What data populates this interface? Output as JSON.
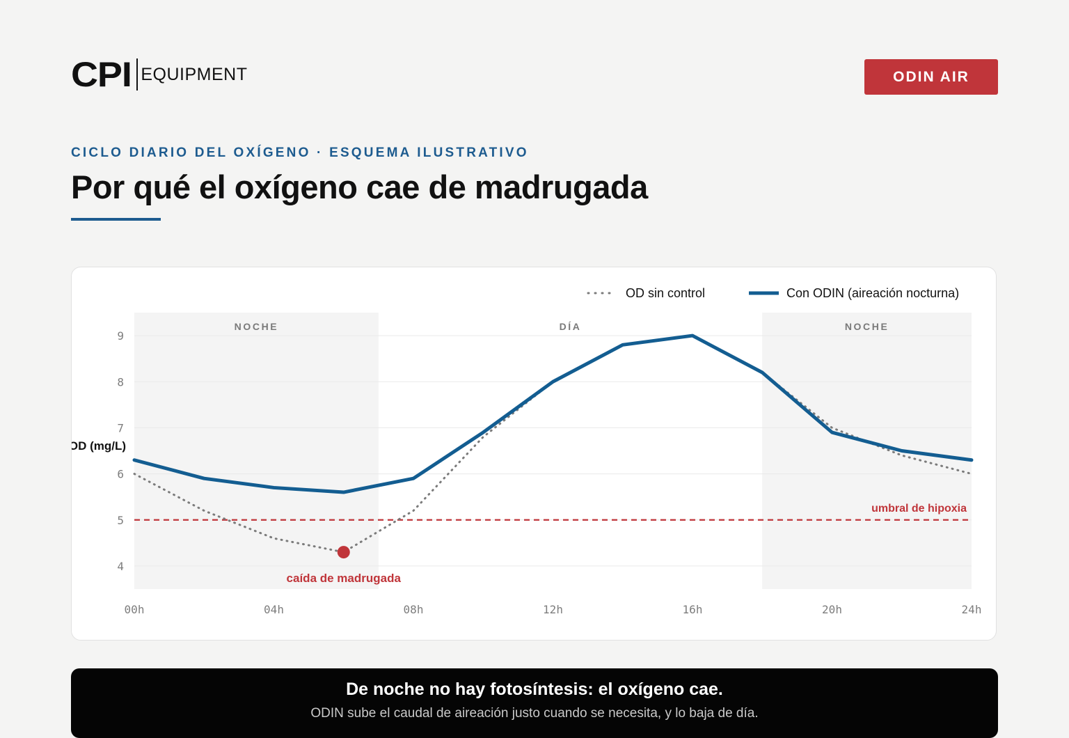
{
  "brand": {
    "logo_main": "CPI",
    "logo_sub": "EQUIPMENT"
  },
  "header": {
    "cta_label": "ODIN AIR"
  },
  "eyebrow": "CICLO DIARIO DEL OXÍGENO · ESQUEMA ILUSTRATIVO",
  "title": "Por qué el oxígeno cae de madrugada",
  "banner": {
    "headline": "De noche no hay fotosíntesis: el oxígeno cae.",
    "subline": "ODIN sube el caudal de aireación justo cuando se necesita, y lo baja de día."
  },
  "colors": {
    "accent_blue": "#1d5b8f",
    "series_blue": "#135d91",
    "accent_red": "#c0353a",
    "dotted_gray": "#7b7b7b",
    "night_band": "#f4f4f4"
  },
  "chart_data": {
    "type": "line",
    "title": "",
    "xlabel": "",
    "ylabel": "OD (mg/L)",
    "xlim": [
      0,
      24
    ],
    "ylim": [
      3.5,
      9.5
    ],
    "grid": true,
    "legend_position": "top-right",
    "x_ticks": [
      0,
      4,
      8,
      12,
      16,
      20,
      24
    ],
    "x_tick_labels": [
      "00h",
      "04h",
      "08h",
      "12h",
      "16h",
      "20h",
      "24h"
    ],
    "y_ticks": [
      4,
      5,
      6,
      7,
      8,
      9
    ],
    "y_tick_labels": [
      "4",
      "5",
      "6",
      "7",
      "8",
      "9"
    ],
    "bands": [
      {
        "label": "NOCHE",
        "from": 0,
        "to": 7,
        "shaded": true
      },
      {
        "label": "DÍA",
        "from": 7,
        "to": 18,
        "shaded": false
      },
      {
        "label": "NOCHE",
        "from": 18,
        "to": 24,
        "shaded": true
      }
    ],
    "series": [
      {
        "name": "OD sin control",
        "style": "dotted",
        "color": "#7b7b7b",
        "x": [
          0,
          2,
          4,
          6,
          8,
          10,
          12,
          14,
          16,
          18,
          20,
          22,
          24
        ],
        "y": [
          6.0,
          5.2,
          4.6,
          4.3,
          5.2,
          6.8,
          8.0,
          8.8,
          9.0,
          8.2,
          7.0,
          6.4,
          6.0
        ]
      },
      {
        "name": "Con ODIN (aireación nocturna)",
        "style": "solid",
        "color": "#135d91",
        "x": [
          0,
          2,
          4,
          6,
          8,
          10,
          12,
          14,
          16,
          18,
          20,
          22,
          24
        ],
        "y": [
          6.3,
          5.9,
          5.7,
          5.6,
          5.9,
          6.9,
          8.0,
          8.8,
          9.0,
          8.2,
          6.9,
          6.5,
          6.3
        ]
      }
    ],
    "threshold": {
      "y": 5,
      "label": "umbral de hipoxia",
      "color": "#c0353a",
      "style": "dashed"
    },
    "annotations": [
      {
        "x": 6,
        "y": 4.3,
        "label": "caída de madrugada",
        "color": "#c0353a"
      }
    ]
  }
}
